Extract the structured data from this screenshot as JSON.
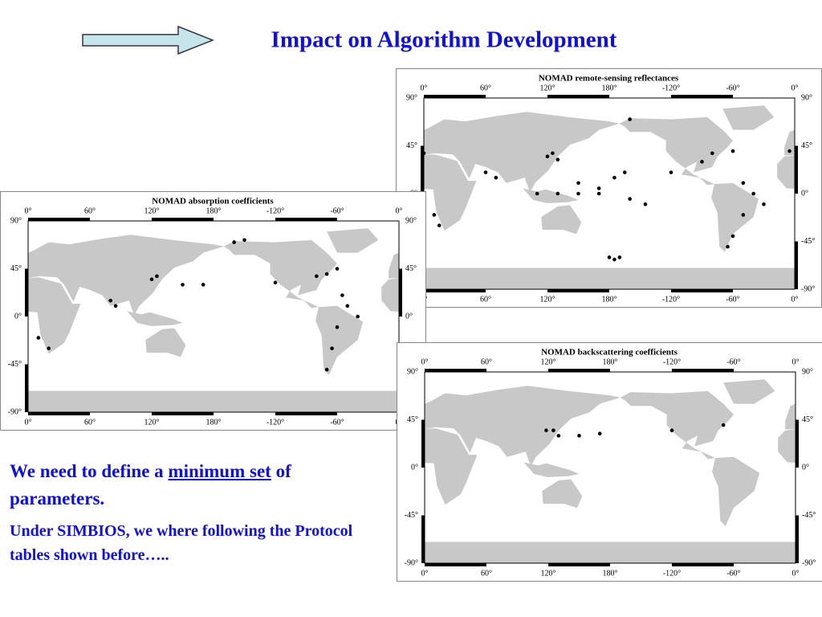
{
  "header": {
    "title": "Impact on Algorithm Development"
  },
  "maps": [
    {
      "title": "NOMAD remote-sensing reflectances",
      "lon_labels": [
        "0°",
        "60°",
        "120°",
        "180°",
        "-120°",
        "-60°",
        "0°"
      ],
      "lat_labels": [
        "90°",
        "45°",
        "0°",
        "-45°",
        "-90°"
      ]
    },
    {
      "title": "NOMAD absorption coefficients",
      "lon_labels": [
        "0°",
        "60°",
        "120°",
        "180°",
        "-120°",
        "-60°",
        "0°"
      ],
      "lat_labels": [
        "90°",
        "45°",
        "0°",
        "-45°",
        "-90°"
      ]
    },
    {
      "title": "NOMAD backscattering coefficients",
      "lon_labels": [
        "0°",
        "60°",
        "120°",
        "180°",
        "-120°",
        "-60°",
        "0°"
      ],
      "lat_labels": [
        "90°",
        "45°",
        "0°",
        "-45°",
        "-90°"
      ]
    }
  ],
  "body": {
    "line1": {
      "before": "We need to define a",
      "emphasis": "minimum set",
      "after": "of parameters."
    },
    "line2": "Under SIMBIOS, we where following the Protocol tables shown before….."
  }
}
